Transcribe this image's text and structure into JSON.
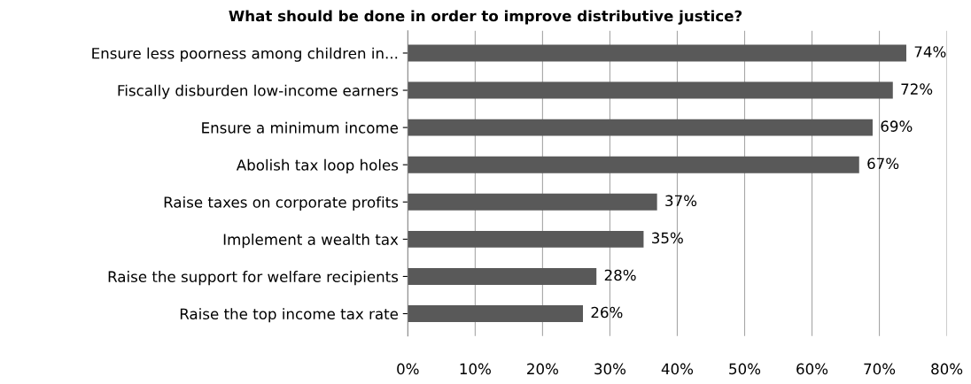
{
  "chart_data": {
    "type": "bar",
    "orientation": "horizontal",
    "title": "What should be done in order to improve distributive justice?",
    "categories": [
      "Ensure less poorness among children in...",
      "Fiscally disburden low-income earners",
      "Ensure a minimum income",
      "Abolish tax loop holes",
      "Raise taxes on corporate profits",
      "Implement a wealth tax",
      "Raise the support for welfare recipients",
      "Raise the top income tax rate"
    ],
    "values": [
      74,
      72,
      69,
      67,
      37,
      35,
      28,
      26
    ],
    "value_labels": [
      "74%",
      "72%",
      "69%",
      "67%",
      "37%",
      "35%",
      "28%",
      "26%"
    ],
    "color": "#595959",
    "xlim": [
      0,
      80
    ],
    "xticks": [
      {
        "value": 0,
        "label": "0%"
      },
      {
        "value": 10,
        "label": "10%"
      },
      {
        "value": 20,
        "label": "20%"
      },
      {
        "value": 30,
        "label": "30%"
      },
      {
        "value": 40,
        "label": "40%"
      },
      {
        "value": 50,
        "label": "50%"
      },
      {
        "value": 60,
        "label": "60%"
      },
      {
        "value": 70,
        "label": "70%"
      },
      {
        "value": 80,
        "label": "80%"
      }
    ],
    "grid": "x"
  }
}
